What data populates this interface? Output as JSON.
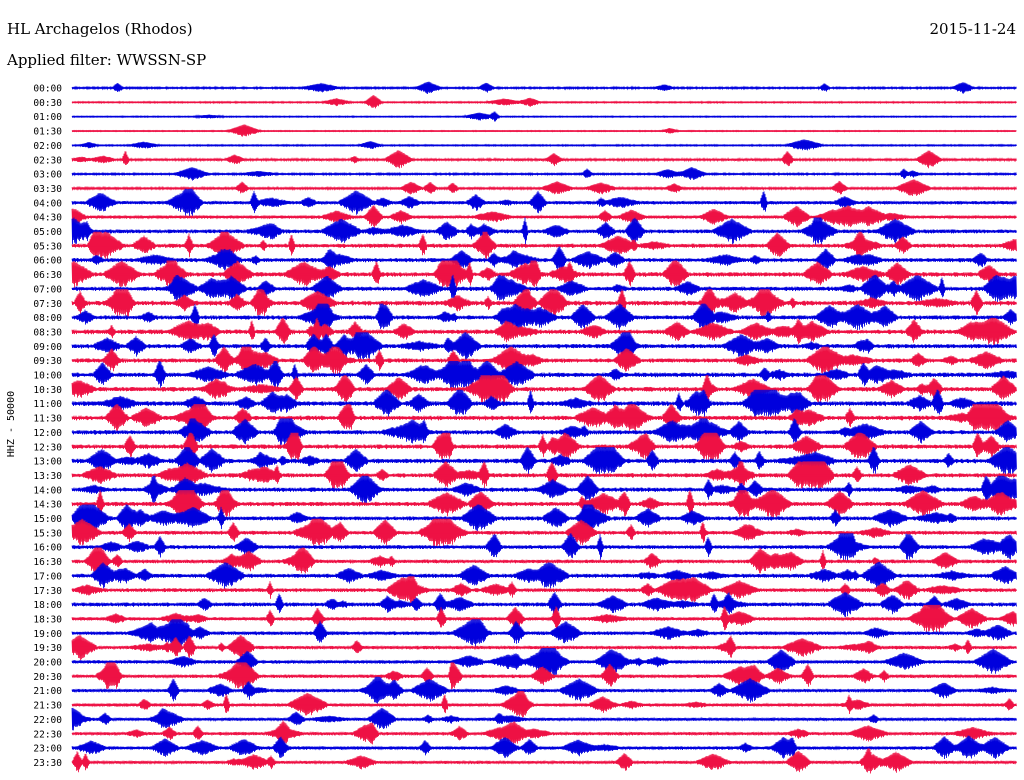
{
  "header": {
    "station": "HL Archagelos (Rhodos)",
    "date": "2015-11-24",
    "filter": "Applied filter: WWSSN-SP"
  },
  "chart_data": {
    "type": "line",
    "ylabel": "HHZ - 50000",
    "rows": [
      "00:00",
      "00:30",
      "01:00",
      "01:30",
      "02:00",
      "02:30",
      "03:00",
      "03:30",
      "04:00",
      "04:30",
      "05:00",
      "05:30",
      "06:00",
      "06:30",
      "07:00",
      "07:30",
      "08:00",
      "08:30",
      "09:00",
      "09:30",
      "10:00",
      "10:30",
      "11:00",
      "11:30",
      "12:00",
      "12:30",
      "13:00",
      "13:30",
      "14:00",
      "14:30",
      "15:00",
      "15:30",
      "16:00",
      "16:30",
      "17:00",
      "17:30",
      "18:00",
      "18:30",
      "19:00",
      "19:30",
      "20:00",
      "20:30",
      "21:00",
      "21:30",
      "22:00",
      "22:30",
      "23:00",
      "23:30"
    ],
    "activity": [
      0.25,
      0.15,
      0.1,
      0.08,
      0.15,
      0.35,
      0.25,
      0.35,
      0.6,
      0.55,
      0.7,
      0.75,
      0.75,
      0.85,
      0.8,
      0.9,
      0.8,
      0.85,
      0.8,
      0.8,
      0.85,
      0.85,
      0.9,
      0.85,
      0.8,
      0.85,
      0.85,
      0.8,
      0.8,
      0.8,
      0.75,
      0.7,
      0.7,
      0.65,
      0.75,
      0.7,
      0.75,
      0.6,
      0.65,
      0.6,
      0.6,
      0.6,
      0.55,
      0.55,
      0.5,
      0.55,
      0.6,
      0.5
    ],
    "colors": [
      "#0000dd",
      "#ee1144"
    ],
    "grid": false
  }
}
